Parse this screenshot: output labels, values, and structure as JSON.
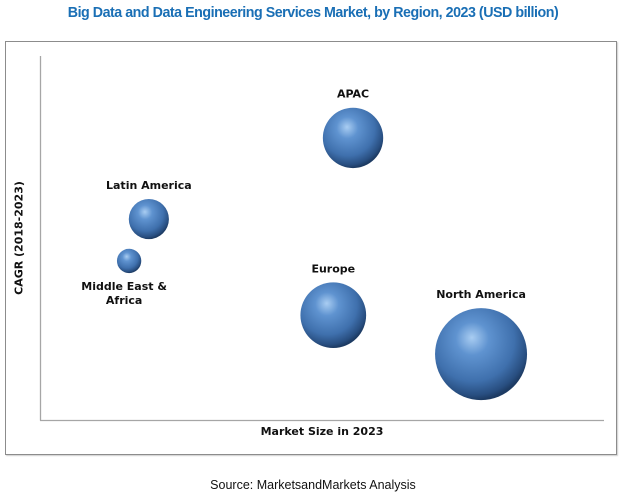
{
  "chart_data": {
    "type": "scatter",
    "subtype": "bubble",
    "title": "Big Data and Data Engineering Services Market, by Region, 2023 (USD billion)",
    "xlabel": "Market Size in 2023",
    "ylabel": "CAGR (2018-2023)",
    "xlim": [
      0,
      100
    ],
    "ylim": [
      0,
      100
    ],
    "ticks_shown": false,
    "grid": false,
    "bubble_color": "#4a7ec0",
    "series": [
      {
        "name": "APAC",
        "x": 55.5,
        "y": 77.5,
        "size": 43,
        "label_lines": [
          "APAC"
        ]
      },
      {
        "name": "Latin America",
        "x": 19.3,
        "y": 55.2,
        "size": 19,
        "label_lines": [
          "Latin America"
        ]
      },
      {
        "name": "Middle East & Africa",
        "x": 15.8,
        "y": 43.7,
        "size": 7,
        "label_lines": [
          "Middle East &",
          "Africa"
        ]
      },
      {
        "name": "Europe",
        "x": 52.0,
        "y": 28.8,
        "size": 51,
        "label_lines": [
          "Europe"
        ]
      },
      {
        "name": "North America",
        "x": 78.2,
        "y": 18.1,
        "size": 100,
        "label_lines": [
          "North America"
        ]
      }
    ],
    "note": "Axes carry no numeric scale; positions are relative (0-100) estimates; size is relative bubble area (North America = 100)."
  },
  "source": "Source: MarketsandMarkets Analysis"
}
